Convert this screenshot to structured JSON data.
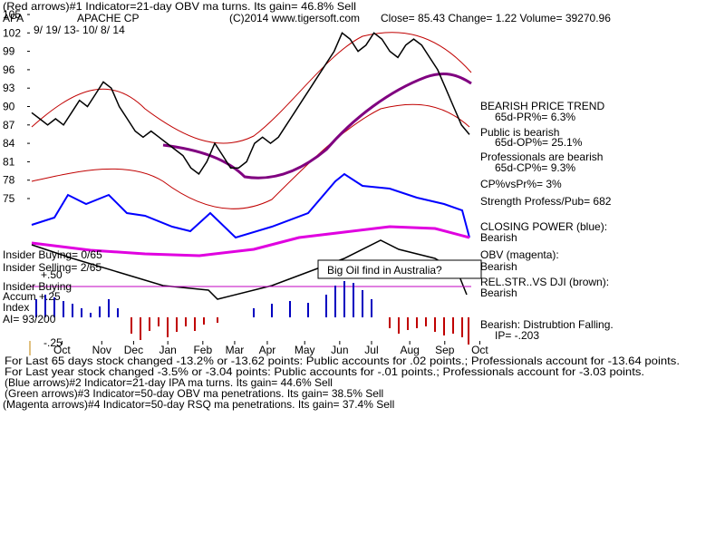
{
  "chart_data": {
    "type": "line",
    "title": "APACHE CP",
    "annotations": [
      "(Red arrows)#1 Indicator=21-day OBV ma turns. Its gain= 46.8% Sell",
      "APA",
      "(C)2014 www.tigersoft.com",
      "Close=  85.43  Change= 1.22 Volume= 39270.96",
      "9/ 19/ 13-  10/ 8/ 14",
      "BEARISH PRICE TREND",
      "65d-PR%= 6.3%",
      "Public is bearish",
      "65d-OP%= 25.1%",
      "Professionals are bearish",
      "65d-CP%= 9.3%",
      "CP%vsPr%=  3%",
      "Strength Profess/Pub= 682",
      "CLOSING POWER (blue):",
      "Bearish",
      "OBV (magenta):",
      "Bearish",
      "REL.STR..VS DJI (brown):",
      "Bearish",
      "Bearish: Distrubtion Falling.",
      "IP= -.203",
      "Insider Buying= 0/65",
      "Insider Selling= 2/65",
      "Insider Buying",
      "Accum  +.25",
      "Index",
      "AI= 93/200",
      "+.50",
      "-.25",
      "Big Oil find in Australia?",
      "For Last 65 days stock changed -13.2% or -13.62 points:  Public accounts for  .02 points.;  Professionals account for -13.64 points.",
      "For Last year stock changed -3.5% or -3.04 points:  Public accounts for -.01 points.;  Professionals account for -3.03 points.",
      "(Blue arrows)#2 Indicator=21-day IPA ma turns. Its gain= 44.6% Sell",
      "(Green arrows)#3 Indicator=50-day OBV ma penetrations. Its gain= 38.5% Sell",
      "(Magenta arrows)#4 Indicator=50-day RSQ ma penetrations. Its gain= 37.4% Sell"
    ],
    "series": [
      {
        "name": "APA",
        "color": "#000000",
        "values": [
          89,
          88,
          87,
          88,
          87,
          89,
          91,
          90,
          92,
          94,
          93,
          90,
          88,
          86,
          85,
          86,
          85,
          84,
          83,
          82,
          80,
          79,
          81,
          84,
          82,
          80,
          80,
          81,
          84,
          85,
          84,
          85,
          87,
          89,
          91,
          93,
          95,
          97,
          99,
          102,
          101,
          99,
          100,
          102,
          101,
          99,
          98,
          100,
          101,
          100,
          98,
          96,
          93,
          90,
          87,
          85.43
        ]
      }
    ],
    "xlim": [
      0,
      55
    ],
    "xticks": [
      {
        "value": 3.8,
        "label": "Oct"
      },
      {
        "value": 8.8,
        "label": "Nov"
      },
      {
        "value": 12.8,
        "label": "Dec"
      },
      {
        "value": 17.1,
        "label": "Jan"
      },
      {
        "value": 21.5,
        "label": "Feb"
      },
      {
        "value": 25.5,
        "label": "Mar"
      },
      {
        "value": 29.6,
        "label": "Apr"
      },
      {
        "value": 34.3,
        "label": "May"
      },
      {
        "value": 38.7,
        "label": "Jun"
      },
      {
        "value": 42.7,
        "label": "Jul"
      },
      {
        "value": 47.5,
        "label": "Aug"
      },
      {
        "value": 51.9,
        "label": "Sep"
      },
      {
        "value": 56.3,
        "label": "Oct"
      }
    ],
    "ylim": [
      75,
      105
    ],
    "yticks": [
      105,
      102,
      99,
      96,
      93,
      90,
      87,
      84,
      81,
      78,
      75
    ]
  }
}
